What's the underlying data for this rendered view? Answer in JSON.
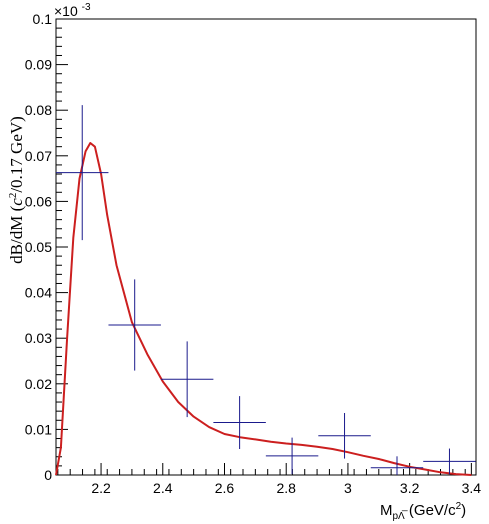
{
  "chart_data": {
    "type": "scatter",
    "title": "",
    "ylabel_parts": {
      "main": "dB/dM (",
      "c": "c",
      "sup": "2",
      "rest": "/0.17 GeV)"
    },
    "xlabel_parts": {
      "main": "M",
      "sub": "pΛ̅",
      "rest": " (GeV/c",
      "sup": "2",
      "close": ")"
    },
    "y_exponent_parts": {
      "base": "×10",
      "sup": "-3"
    },
    "xlim": [
      2.054,
      3.415
    ],
    "ylim": [
      0,
      0.1
    ],
    "x_ticks": [
      2.2,
      2.4,
      2.6,
      2.8,
      3.0,
      3.2,
      3.4
    ],
    "x_tick_labels": [
      "2.2",
      "2.4",
      "2.6",
      "2.8",
      "3",
      "3.2",
      "3.4"
    ],
    "y_ticks": [
      0,
      0.01,
      0.02,
      0.03,
      0.04,
      0.05,
      0.06,
      0.07,
      0.08,
      0.09,
      0.1
    ],
    "y_tick_labels": [
      "0",
      "0.01",
      "0.02",
      "0.03",
      "0.04",
      "0.05",
      "0.06",
      "0.07",
      "0.08",
      "0.09",
      "0.1"
    ],
    "y_unit_note": "values in units of 10^-3",
    "colors": {
      "data": "#1a1a8c",
      "curve": "#cc1f1f",
      "axis": "#000000"
    },
    "series": [
      {
        "type": "errorbar",
        "points": [
          {
            "x": 2.139,
            "y": 0.0663,
            "xerr": 0.085,
            "yerr": 0.0148
          },
          {
            "x": 2.309,
            "y": 0.0329,
            "xerr": 0.085,
            "yerr": 0.01
          },
          {
            "x": 2.479,
            "y": 0.021,
            "xerr": 0.085,
            "yerr": 0.0083
          },
          {
            "x": 2.649,
            "y": 0.0115,
            "xerr": 0.085,
            "yerr": 0.0058
          },
          {
            "x": 2.819,
            "y": 0.0042,
            "xerr": 0.085,
            "yerr": 0.004
          },
          {
            "x": 2.989,
            "y": 0.0086,
            "xerr": 0.085,
            "yerr": 0.005
          },
          {
            "x": 3.159,
            "y": 0.0016,
            "xerr": 0.085,
            "yerr": 0.0025
          },
          {
            "x": 3.329,
            "y": 0.003,
            "xerr": 0.085,
            "yerr": 0.0028
          }
        ]
      },
      {
        "type": "line",
        "x": [
          2.054,
          2.07,
          2.09,
          2.11,
          2.13,
          2.15,
          2.165,
          2.18,
          2.2,
          2.22,
          2.25,
          2.3,
          2.35,
          2.4,
          2.45,
          2.5,
          2.55,
          2.6,
          2.65,
          2.7,
          2.75,
          2.8,
          2.85,
          2.9,
          2.95,
          3.0,
          3.05,
          3.1,
          3.15,
          3.2,
          3.25,
          3.3,
          3.35,
          3.4
        ],
        "y": [
          0.0,
          0.006,
          0.03,
          0.052,
          0.065,
          0.071,
          0.0728,
          0.072,
          0.066,
          0.057,
          0.046,
          0.0335,
          0.0265,
          0.0205,
          0.016,
          0.0128,
          0.0105,
          0.009,
          0.0083,
          0.0078,
          0.0073,
          0.0069,
          0.0066,
          0.0062,
          0.0057,
          0.005,
          0.0042,
          0.0035,
          0.0026,
          0.0018,
          0.0012,
          0.0006,
          0.0002,
          0.0
        ]
      }
    ]
  }
}
